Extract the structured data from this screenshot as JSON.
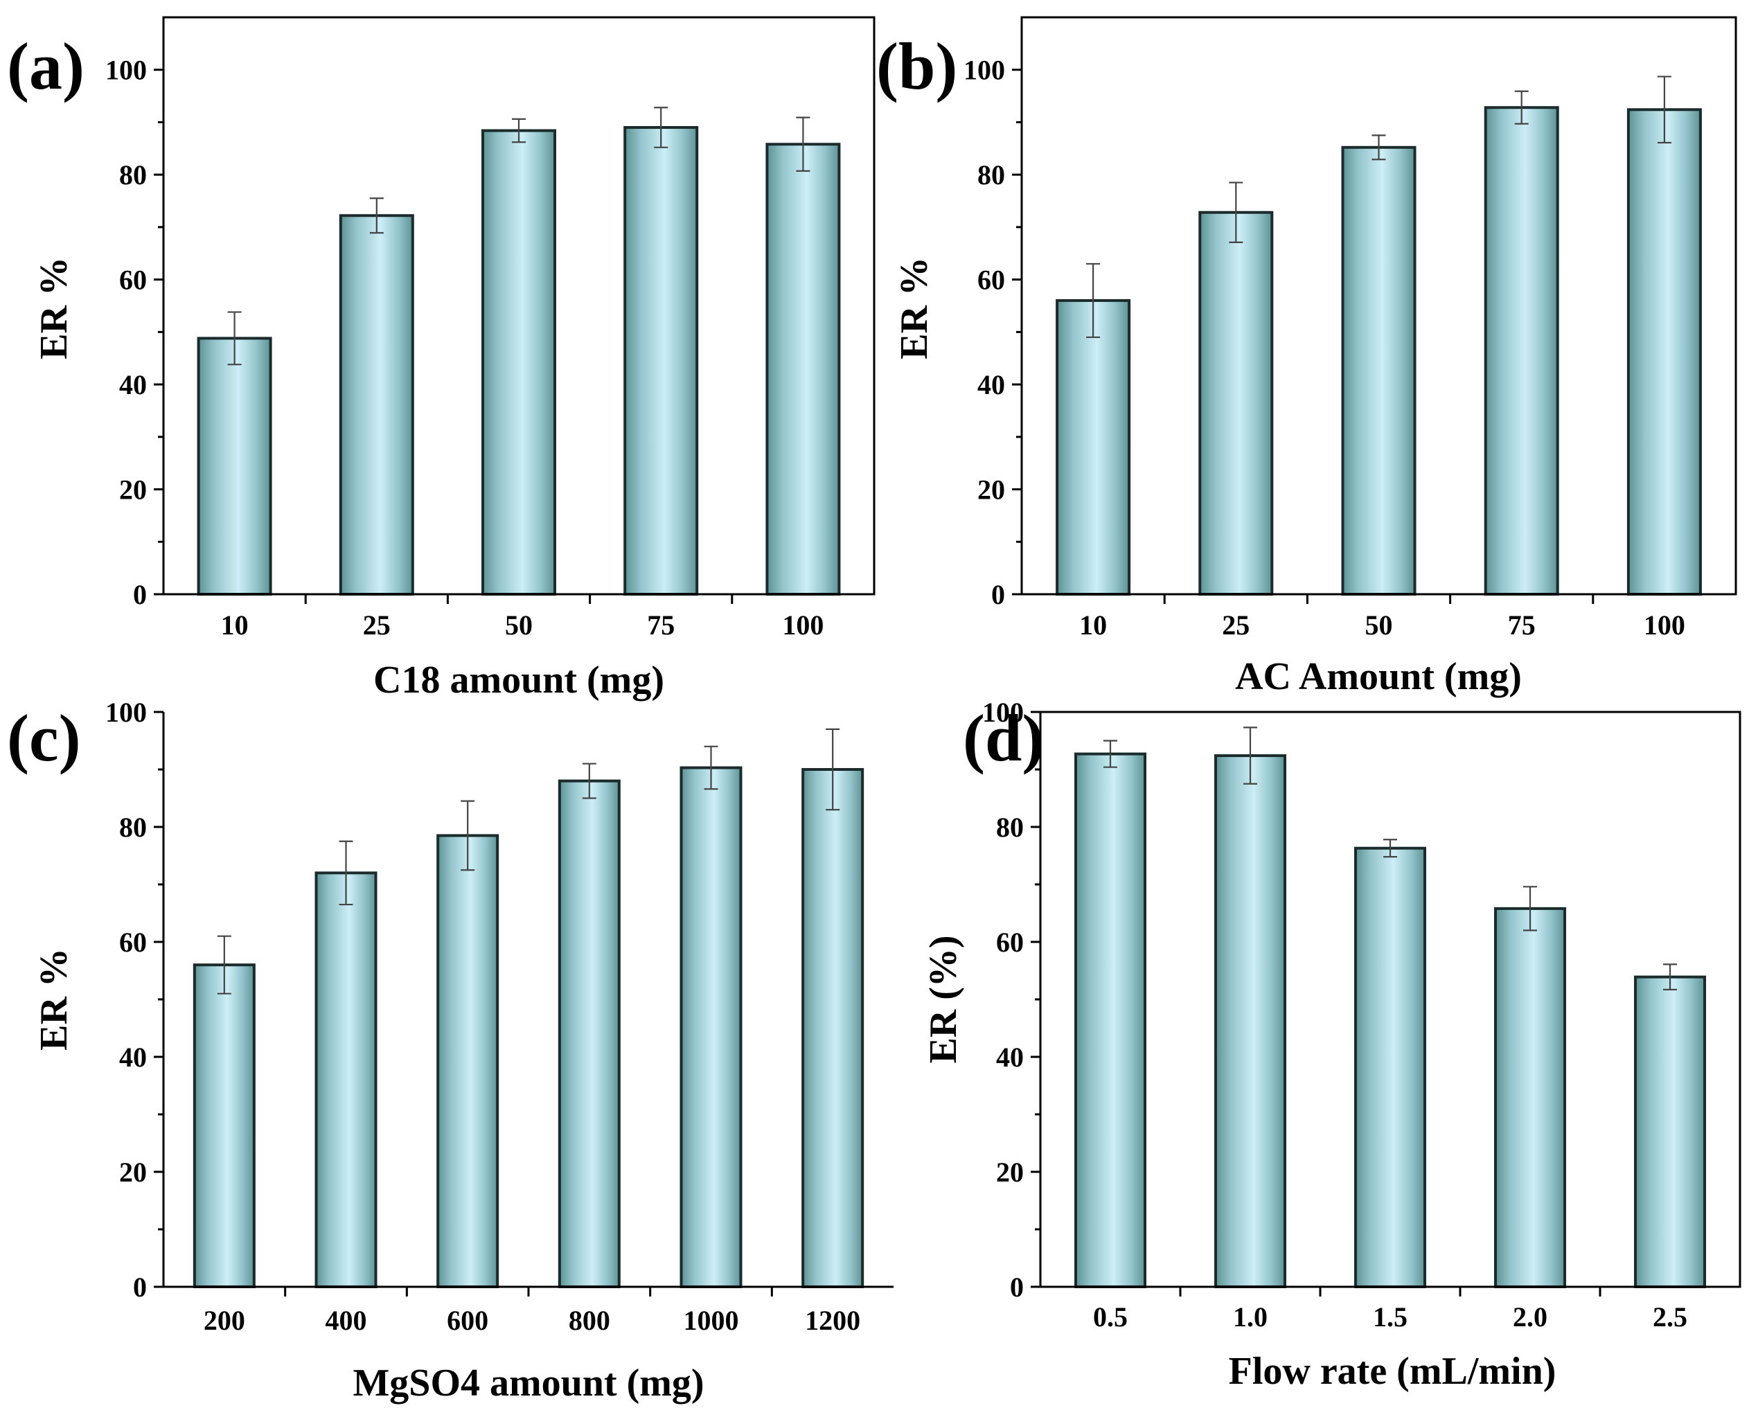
{
  "chart_data": [
    {
      "type": "bar",
      "panel": "(a)",
      "categories": [
        "10",
        "25",
        "50",
        "75",
        "100"
      ],
      "values": [
        48.8,
        72.2,
        88.4,
        89.0,
        85.8
      ],
      "errors": [
        5.0,
        3.3,
        2.2,
        3.8,
        5.1
      ],
      "xlabel": "C18 amount (mg)",
      "ylabel": "ER %",
      "ylim": [
        0,
        110
      ],
      "yticks": [
        0,
        20,
        40,
        60,
        80,
        100
      ],
      "yticklabels": [
        "0",
        "20",
        "40",
        "60",
        "80",
        "100"
      ],
      "frame": "box",
      "grid": false
    },
    {
      "type": "bar",
      "panel": "(b)",
      "categories": [
        "10",
        "25",
        "50",
        "75",
        "100"
      ],
      "values": [
        56.0,
        72.8,
        85.2,
        92.8,
        92.4
      ],
      "errors": [
        7.0,
        5.7,
        2.3,
        3.1,
        6.3
      ],
      "xlabel": "AC Amount (mg)",
      "ylabel": "ER %",
      "ylim": [
        0,
        110
      ],
      "yticks": [
        0,
        20,
        40,
        60,
        80,
        100
      ],
      "yticklabels": [
        "0",
        "20",
        "40",
        "60",
        "80",
        "100"
      ],
      "frame": "box",
      "grid": false
    },
    {
      "type": "bar",
      "panel": "(c)",
      "categories": [
        "200",
        "400",
        "600",
        "800",
        "1000",
        "1200"
      ],
      "values": [
        56.0,
        72.0,
        78.5,
        88.0,
        90.3,
        90.0
      ],
      "errors": [
        5.0,
        5.5,
        6.0,
        3.0,
        3.7,
        7.0
      ],
      "xlabel": "MgSO4 amount (mg)",
      "ylabel": "ER %",
      "ylim": [
        0,
        100
      ],
      "yticks": [
        0,
        20,
        40,
        60,
        80,
        100
      ],
      "yticklabels": [
        "0",
        "20",
        "40",
        "60",
        "80",
        "100"
      ],
      "frame": "left-bottom",
      "grid": false
    },
    {
      "type": "bar",
      "panel": "(d)",
      "categories": [
        "0.5",
        "1.0",
        "1.5",
        "2.0",
        "2.5"
      ],
      "values": [
        92.7,
        92.4,
        76.3,
        65.8,
        53.9
      ],
      "errors": [
        2.3,
        4.9,
        1.5,
        3.8,
        2.2
      ],
      "xlabel": "Flow rate (mL/min)",
      "ylabel": "ER (%)",
      "ylim": [
        0,
        100
      ],
      "yticks": [
        0,
        20,
        40,
        60,
        80,
        100
      ],
      "yticklabels": [
        "0",
        "20",
        "40",
        "60",
        "80",
        "100"
      ],
      "frame": "box",
      "grid": false
    }
  ],
  "colors": {
    "bar_edge": "#1b2b2b",
    "bar_fill_dark": "#5e9494",
    "bar_fill_mid": "#94c4cc",
    "bar_fill_light": "#cdeef6",
    "error_bar": "#444444",
    "axis": "#000000"
  }
}
